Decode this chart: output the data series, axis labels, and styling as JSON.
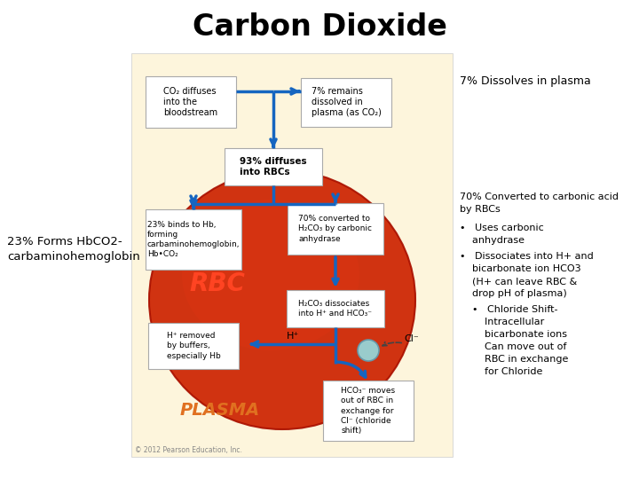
{
  "title": "Carbon Dioxide",
  "bg_color": "#ffffff",
  "diagram_bg": "#fdf5dc",
  "rbc_color": "#cc2200",
  "rbc_label": "RBC",
  "plasma_label": "PLASMA",
  "plasma_color": "#e07020",
  "left_annotation_line1": "23% Forms HbCO2-",
  "left_annotation_line2": "carbaminohemoglobin",
  "top_right_annotation": "7% Dissolves in plasma",
  "mid_right_line1": "70% Converted to carbonic acid",
  "mid_right_line2": "by RBCs",
  "bullet1_line1": "•   Uses carbonic",
  "bullet1_line2": "    anhydrase",
  "bullet2_line1": "•   Dissociates into H+ and",
  "bullet2_line2": "    bicarbonate ion HCO3",
  "bullet2_line3": "    (H+ can leave RBC &",
  "bullet2_line4": "    drop pH of plasma)",
  "bullet3_line1": "    •   Chloride Shift-",
  "bullet3_line2": "        Intracellular",
  "bullet3_line3": "        bicarbonate ions",
  "bullet3_line4": "        Can move out of",
  "bullet3_line5": "        RBC in exchange",
  "bullet3_line6": "        for Chloride",
  "box1_text": "CO₂ diffuses\ninto the\nbloodstream",
  "box2_text": "7% remains\ndissolved in\nplasma (as CO₂)",
  "box3_text": "93% diffuses\ninto RBCs",
  "box4_text": "23% binds to Hb,\nforming\ncarbaminohemoglobin,\nHb•CO₂",
  "box5_text": "70% converted to\nH₂CO₃ by carbonic\nanhydrase",
  "box6_text": "H₂CO₃ dissociates\ninto H⁺ and HCO₃⁻",
  "box7_text": "H⁺ removed\nby buffers,\nespecially Hb",
  "box8_text": "HCO₃⁻ moves\nout of RBC in\nexchange for\nCl⁻ (chloride\nshift)",
  "arrow_color": "#1565c0",
  "box_bg": "#ffffff",
  "box_edge": "#aaaaaa",
  "copyright": "© 2012 Pearson Education, Inc."
}
